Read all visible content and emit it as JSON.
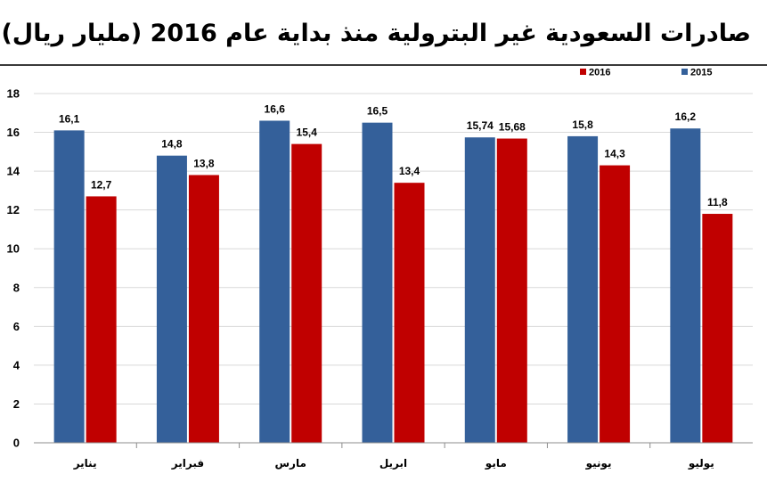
{
  "chart_data": {
    "type": "bar",
    "title": "صادرات السعودية غير البترولية منذ بداية عام 2016 (مليار ريال)",
    "categories": [
      "يناير",
      "فبراير",
      "مارس",
      "ابريل",
      "مايو",
      "يونيو",
      "يوليو"
    ],
    "series": [
      {
        "name": "2015",
        "color": "#34609a",
        "values": [
          16.1,
          14.8,
          16.6,
          16.5,
          15.74,
          15.8,
          16.2
        ],
        "labels": [
          "16,1",
          "14,8",
          "16,6",
          "16,5",
          "15,74",
          "15,8",
          "16,2"
        ]
      },
      {
        "name": "2016",
        "color": "#c00000",
        "values": [
          12.7,
          13.8,
          15.4,
          13.4,
          15.68,
          14.3,
          11.8
        ],
        "labels": [
          "12,7",
          "13,8",
          "15,4",
          "13,4",
          "15,68",
          "14,3",
          "11,8"
        ]
      }
    ],
    "yticks": [
      "0",
      "2",
      "4",
      "6",
      "8",
      "10",
      "12",
      "14",
      "16",
      "18"
    ],
    "ylim": [
      0,
      18
    ],
    "grid": true,
    "legend_position": "top-right",
    "xlabel": "",
    "ylabel": ""
  }
}
